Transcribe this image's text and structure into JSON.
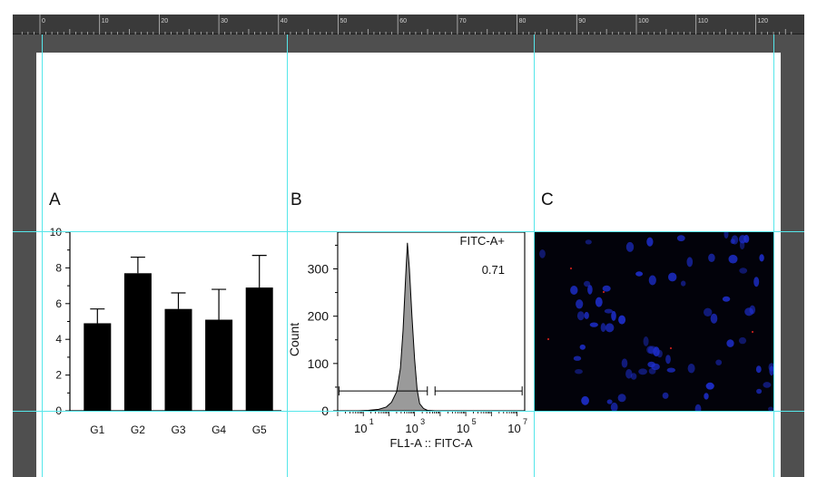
{
  "ruler": {
    "marks": [
      "0",
      "10",
      "20",
      "30",
      "40",
      "50",
      "60",
      "70",
      "80",
      "90",
      "100",
      "110",
      "120"
    ]
  },
  "figure": {
    "panel_a": {
      "label": "A"
    },
    "panel_b": {
      "label": "B"
    },
    "panel_c": {
      "label": "C",
      "description_colors": {
        "background": "#02020a",
        "nuclei": "#1e2fd0",
        "spots": "#c0201a"
      }
    }
  },
  "chart_data": [
    {
      "type": "bar",
      "categories": [
        "G1",
        "G2",
        "G3",
        "G4",
        "G5"
      ],
      "values": [
        4.9,
        7.7,
        5.7,
        5.1,
        6.9
      ],
      "errors": [
        0.8,
        0.9,
        0.9,
        1.7,
        1.8
      ],
      "ylim": [
        0,
        10
      ],
      "yticks": [
        "0",
        "2",
        "4",
        "6",
        "8",
        "10"
      ],
      "bar_color": "#000000"
    },
    {
      "type": "area",
      "xlabel": "FL1-A :: FITC-A",
      "ylabel": "Count",
      "xscale": "log",
      "xticks": [
        "10",
        "10",
        "10",
        "10"
      ],
      "xtick_exponents": [
        "1",
        "3",
        "5",
        "7"
      ],
      "yticks": [
        "0",
        "100",
        "200",
        "300"
      ],
      "ylim": [
        0,
        370
      ],
      "gate_name": "FITC-A+",
      "gate_value": "0.71",
      "histogram": {
        "log10_x": [
          0.3,
          0.8,
          1.2,
          1.6,
          1.9,
          2.1,
          2.3,
          2.45,
          2.55,
          2.65,
          2.72,
          2.8,
          2.9,
          3.0,
          3.1,
          3.2,
          3.35,
          3.5,
          3.8,
          4.2,
          7.0
        ],
        "counts": [
          0,
          0,
          1,
          3,
          8,
          18,
          40,
          90,
          170,
          280,
          355,
          300,
          200,
          110,
          45,
          15,
          5,
          1,
          0,
          0,
          0
        ]
      },
      "fill_color": "#9a9a9a",
      "gates": [
        {
          "from_log10": 0.05,
          "to_log10": 3.5
        },
        {
          "from_log10": 3.8,
          "to_log10": 7.2
        }
      ]
    }
  ]
}
